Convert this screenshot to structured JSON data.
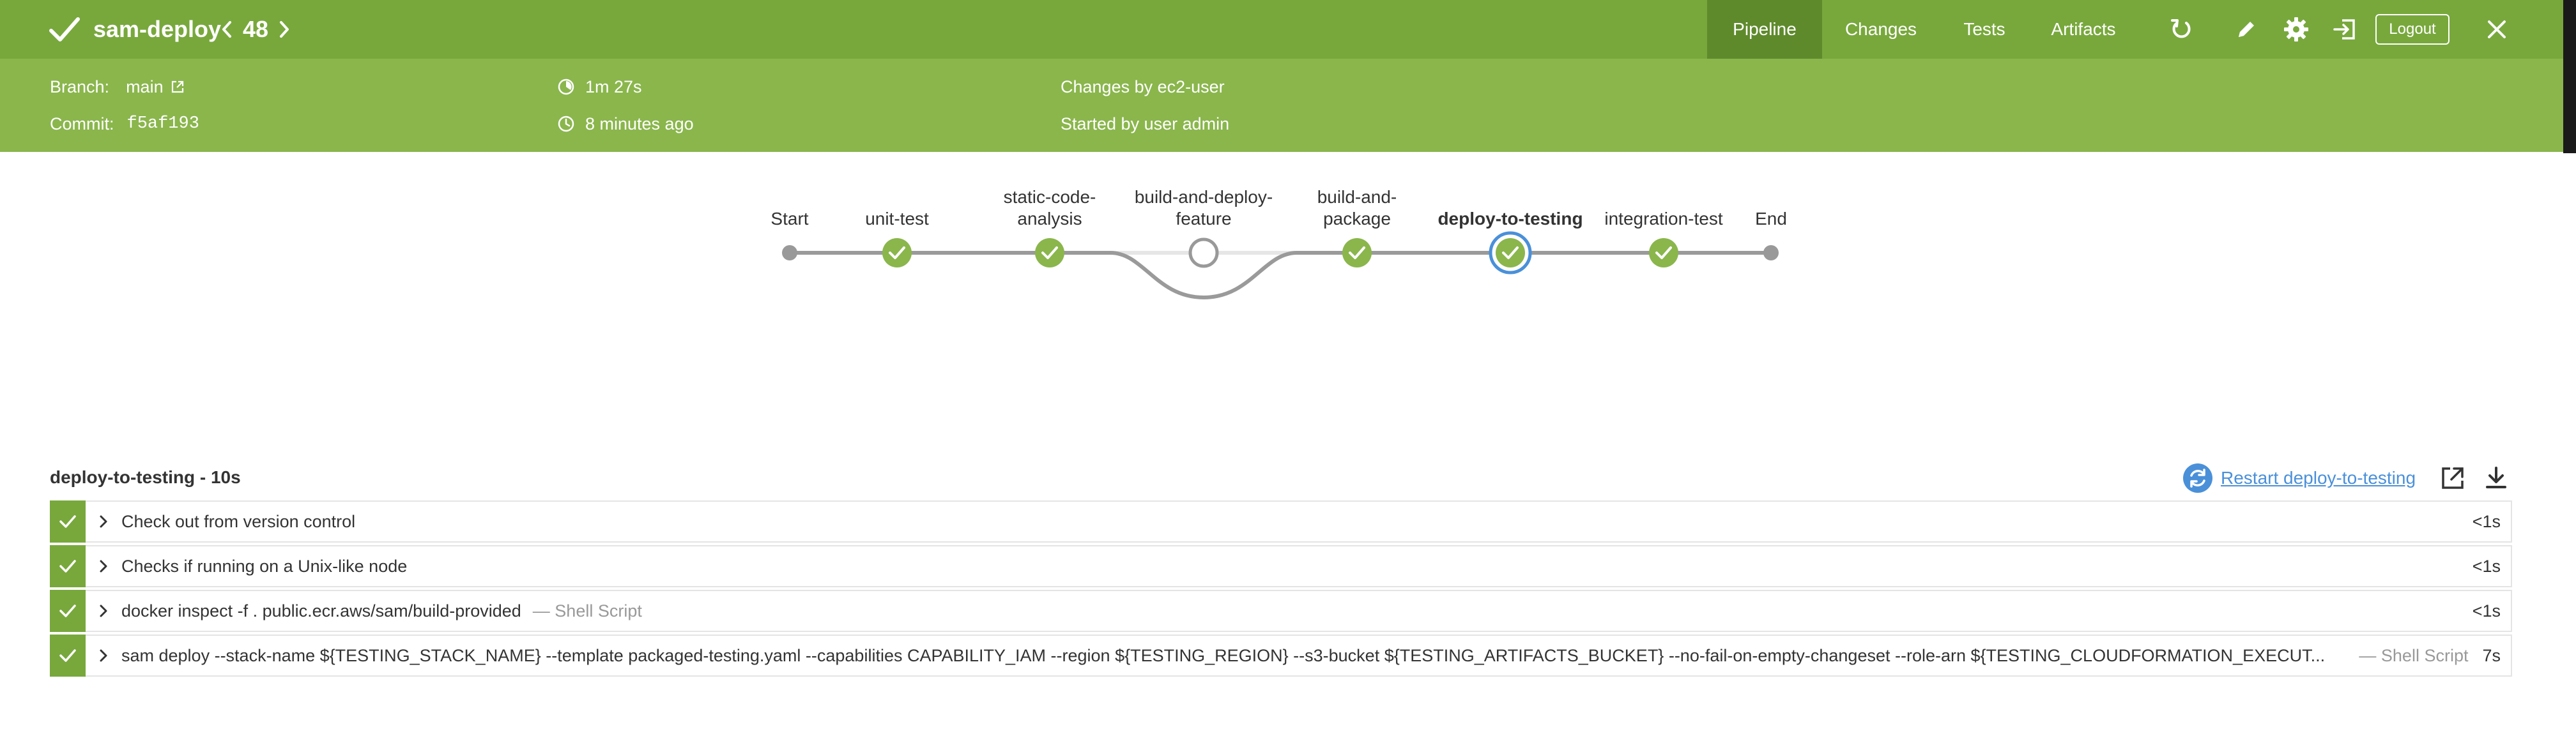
{
  "header": {
    "title": "sam-deploy",
    "run_number": "48",
    "tabs": [
      {
        "label": "Pipeline",
        "active": true
      },
      {
        "label": "Changes",
        "active": false
      },
      {
        "label": "Tests",
        "active": false
      },
      {
        "label": "Artifacts",
        "active": false
      }
    ],
    "logout_label": "Logout"
  },
  "info": {
    "branch_label": "Branch:",
    "branch_value": "main",
    "commit_label": "Commit:",
    "commit_value": "f5af193",
    "duration": "1m 27s",
    "time_ago": "8 minutes ago",
    "changes_by": "Changes by ec2-user",
    "started_by": "Started by user admin"
  },
  "pipeline": {
    "stages": [
      {
        "label": "Start",
        "type": "terminal"
      },
      {
        "label": "unit-test",
        "type": "success"
      },
      {
        "label": "static-code-\nanalysis",
        "type": "success"
      },
      {
        "label": "build-and-deploy-\nfeature",
        "type": "skipped"
      },
      {
        "label": "build-and-\npackage",
        "type": "success"
      },
      {
        "label": "deploy-to-testing",
        "type": "success",
        "selected": true
      },
      {
        "label": "integration-test",
        "type": "success"
      },
      {
        "label": "End",
        "type": "terminal"
      }
    ]
  },
  "detail": {
    "title": "deploy-to-testing - 10s",
    "restart_label": "Restart deploy-to-testing",
    "steps": [
      {
        "text": "Check out from version control",
        "sub": "",
        "duration": "<1s"
      },
      {
        "text": "Checks if running on a Unix-like node",
        "sub": "",
        "duration": "<1s"
      },
      {
        "text": "docker inspect -f . public.ecr.aws/sam/build-provided",
        "sub": "— Shell Script",
        "duration": "<1s"
      },
      {
        "text": "sam deploy --stack-name ${TESTING_STACK_NAME} --template packaged-testing.yaml --capabilities CAPABILITY_IAM --region ${TESTING_REGION} --s3-bucket ${TESTING_ARTIFACTS_BUCKET} --no-fail-on-empty-changeset --role-arn ${TESTING_CLOUDFORMATION_EXECUT...",
        "sub_right": "— Shell Script",
        "duration": "7s"
      }
    ]
  },
  "colors": {
    "header_green": "#78a83c",
    "info_green": "#8ab64c",
    "success_green": "#8ab64c",
    "selected_blue": "#4a90d9",
    "link_blue": "#4a90d9"
  }
}
